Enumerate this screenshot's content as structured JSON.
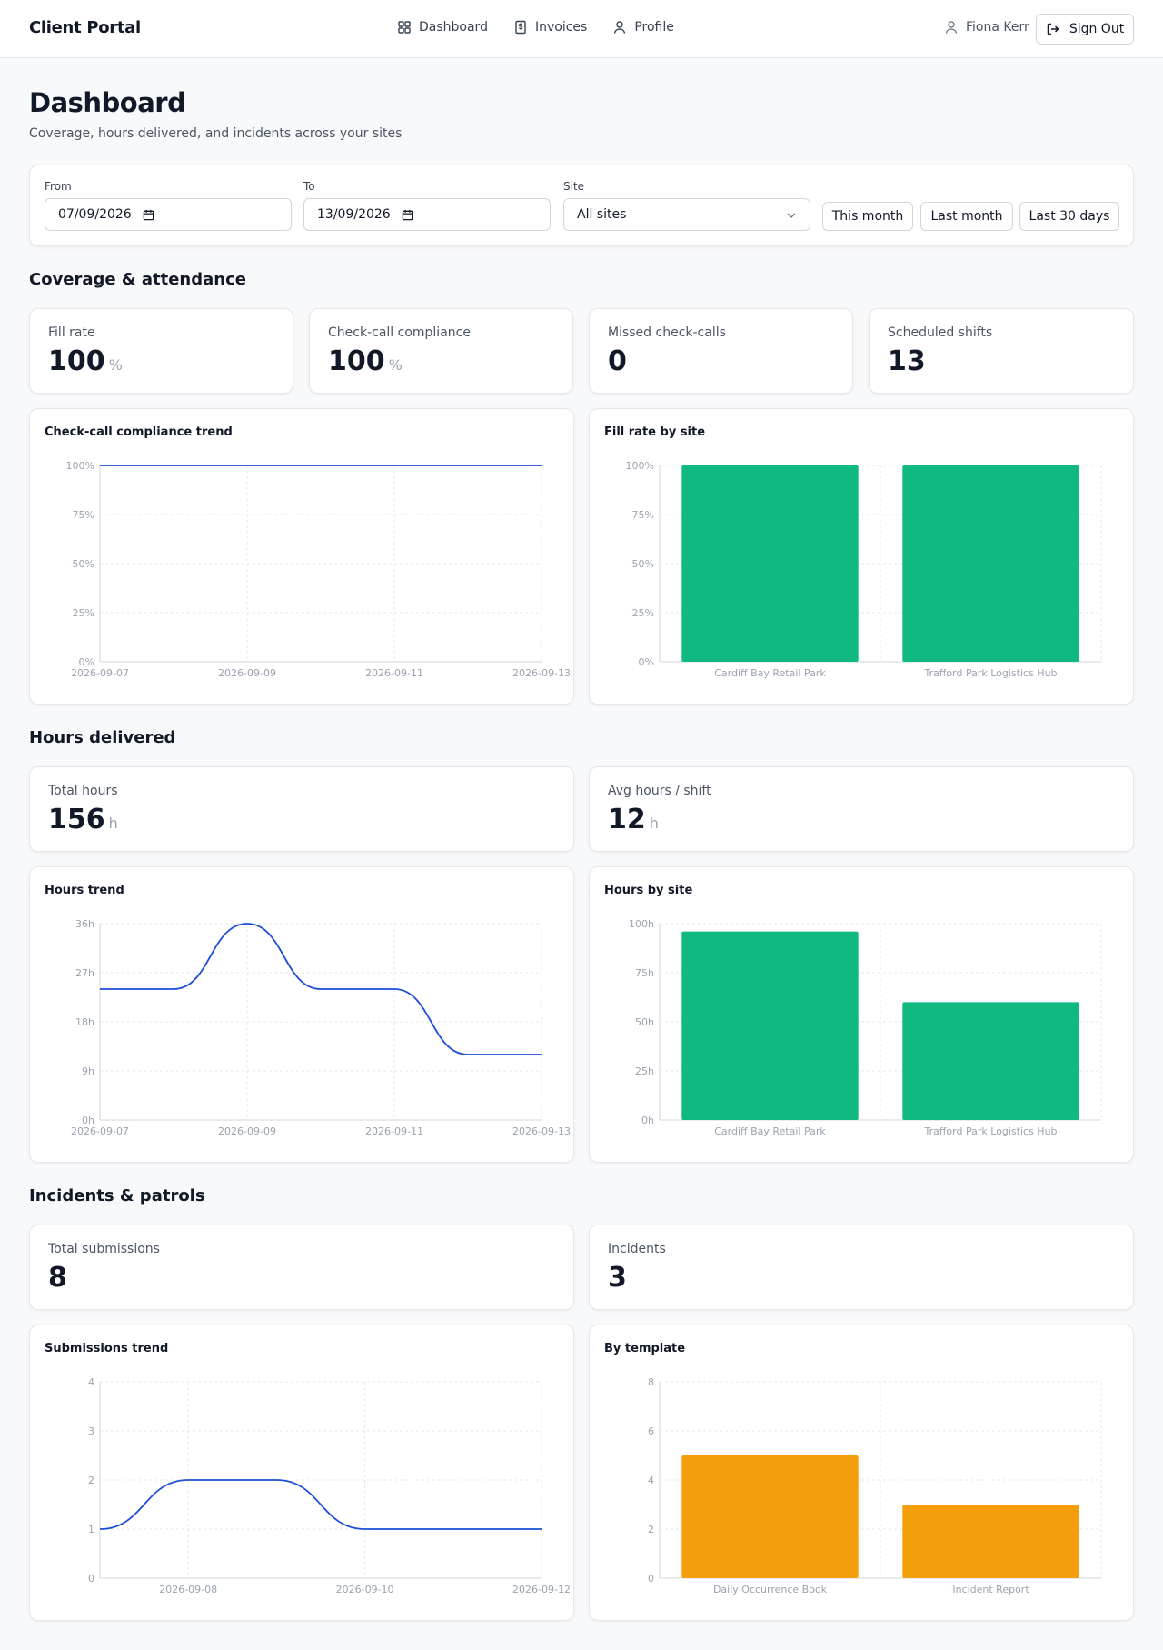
{
  "header": {
    "brand": "Client Portal",
    "nav": [
      {
        "label": "Dashboard",
        "icon": "grid-icon"
      },
      {
        "label": "Invoices",
        "icon": "document-dollar-icon"
      },
      {
        "label": "Profile",
        "icon": "user-icon"
      }
    ],
    "user_name": "Fiona Kerr",
    "signout_label": "Sign Out"
  },
  "page": {
    "title": "Dashboard",
    "subtitle": "Coverage, hours delivered, and incidents across your sites"
  },
  "filters": {
    "from_label": "From",
    "from_value": "07/09/2026",
    "to_label": "To",
    "to_value": "13/09/2026",
    "site_label": "Site",
    "site_value": "All sites",
    "quick": [
      "This month",
      "Last month",
      "Last 30 days"
    ]
  },
  "sections": {
    "coverage": "Coverage & attendance",
    "hours": "Hours delivered",
    "incidents": "Incidents & patrols"
  },
  "stats": {
    "fill_rate": {
      "label": "Fill rate",
      "value": "100",
      "unit": "%"
    },
    "compliance": {
      "label": "Check-call compliance",
      "value": "100",
      "unit": "%"
    },
    "missed": {
      "label": "Missed check-calls",
      "value": "0"
    },
    "scheduled": {
      "label": "Scheduled shifts",
      "value": "13"
    },
    "total_hours": {
      "label": "Total hours",
      "value": "156",
      "unit": "h"
    },
    "avg_hours": {
      "label": "Avg hours / shift",
      "value": "12",
      "unit": "h"
    },
    "submissions": {
      "label": "Total submissions",
      "value": "8"
    },
    "incidents": {
      "label": "Incidents",
      "value": "3"
    }
  },
  "colors": {
    "line": "#1d4ed8",
    "bar_green": "#10b981",
    "bar_orange": "#f59e0b",
    "grid": "#e5e7eb"
  },
  "chart_data": [
    {
      "id": "compliance-trend",
      "title": "Check-call compliance trend",
      "type": "line",
      "x": [
        "2026-09-07",
        "2026-09-08",
        "2026-09-09",
        "2026-09-10",
        "2026-09-11",
        "2026-09-12",
        "2026-09-13"
      ],
      "x_ticks": [
        "2026-09-07",
        "2026-09-09",
        "2026-09-11",
        "2026-09-13"
      ],
      "values": [
        100,
        100,
        100,
        100,
        100,
        100,
        100
      ],
      "ylim": [
        0,
        100
      ],
      "y_ticks": [
        "0%",
        "25%",
        "50%",
        "75%",
        "100%"
      ],
      "grid": true
    },
    {
      "id": "fill-by-site",
      "title": "Fill rate by site",
      "type": "bar",
      "categories": [
        "Cardiff Bay Retail Park",
        "Trafford Park Logistics Hub"
      ],
      "values": [
        100,
        100
      ],
      "ylim": [
        0,
        100
      ],
      "y_ticks": [
        "0%",
        "25%",
        "50%",
        "75%",
        "100%"
      ],
      "grid": true
    },
    {
      "id": "hours-trend",
      "title": "Hours trend",
      "type": "line",
      "x": [
        "2026-09-07",
        "2026-09-08",
        "2026-09-09",
        "2026-09-10",
        "2026-09-11",
        "2026-09-12",
        "2026-09-13"
      ],
      "x_ticks": [
        "2026-09-07",
        "2026-09-09",
        "2026-09-11",
        "2026-09-13"
      ],
      "values": [
        24,
        24,
        36,
        24,
        24,
        12,
        12
      ],
      "ylim": [
        0,
        36
      ],
      "y_ticks": [
        "0h",
        "9h",
        "18h",
        "27h",
        "36h"
      ],
      "grid": true
    },
    {
      "id": "hours-by-site",
      "title": "Hours by site",
      "type": "bar",
      "categories": [
        "Cardiff Bay Retail Park",
        "Trafford Park Logistics Hub"
      ],
      "values": [
        96,
        60
      ],
      "ylim": [
        0,
        100
      ],
      "y_ticks": [
        "0h",
        "25h",
        "50h",
        "75h",
        "100h"
      ],
      "grid": true
    },
    {
      "id": "submissions-trend",
      "title": "Submissions trend",
      "type": "line",
      "x": [
        "2026-09-07",
        "2026-09-08",
        "2026-09-09",
        "2026-09-10",
        "2026-09-11",
        "2026-09-12"
      ],
      "x_ticks": [
        "2026-09-08",
        "2026-09-10",
        "2026-09-12"
      ],
      "values": [
        1,
        2,
        2,
        1,
        1,
        1
      ],
      "ylim": [
        0,
        4
      ],
      "y_ticks": [
        "0",
        "1",
        "2",
        "3",
        "4"
      ],
      "grid": true
    },
    {
      "id": "by-template",
      "title": "By template",
      "type": "bar",
      "categories": [
        "Daily Occurrence Book",
        "Incident Report"
      ],
      "values": [
        5,
        3
      ],
      "ylim": [
        0,
        8
      ],
      "y_ticks": [
        "0",
        "2",
        "4",
        "6",
        "8"
      ],
      "grid": true
    }
  ]
}
